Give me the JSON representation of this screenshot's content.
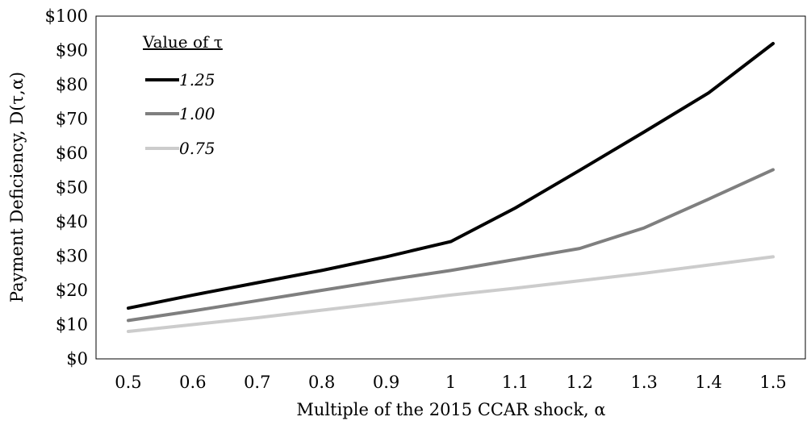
{
  "chart_data": {
    "type": "line",
    "xlabel": "Multiple of the 2015 CCAR shock, α",
    "ylabel": "Payment Deficiency, D(τ,α)",
    "x": [
      0.5,
      0.6,
      0.7,
      0.8,
      0.9,
      1.0,
      1.1,
      1.2,
      1.3,
      1.4,
      1.5
    ],
    "x_tick_labels": [
      "0.5",
      "0.6",
      "0.7",
      "0.8",
      "0.9",
      "1",
      "1.1",
      "1.2",
      "1.3",
      "1.4",
      "1.5"
    ],
    "ylim": [
      0,
      100
    ],
    "y_ticks": [
      0,
      10,
      20,
      30,
      40,
      50,
      60,
      70,
      80,
      90,
      100
    ],
    "y_tick_labels": [
      "$0",
      "$10",
      "$20",
      "$30",
      "$40",
      "$50",
      "$60",
      "$70",
      "$80",
      "$90",
      "$100"
    ],
    "grid": false,
    "legend": {
      "title": "Value of τ",
      "placement": "top-left"
    },
    "series": [
      {
        "name": "1.25",
        "color": "#000000",
        "values": [
          14.8,
          18.6,
          22.2,
          25.8,
          29.8,
          34.2,
          44.0,
          55.0,
          66.2,
          77.6,
          92.0
        ]
      },
      {
        "name": "1.00",
        "color": "#7f7f7f",
        "values": [
          11.2,
          14.0,
          17.0,
          20.0,
          23.0,
          25.8,
          29.0,
          32.2,
          38.2,
          46.6,
          55.2
        ]
      },
      {
        "name": "0.75",
        "color": "#cccccc",
        "values": [
          8.0,
          10.0,
          12.0,
          14.2,
          16.4,
          18.6,
          20.6,
          22.8,
          25.0,
          27.4,
          29.8
        ]
      }
    ]
  }
}
